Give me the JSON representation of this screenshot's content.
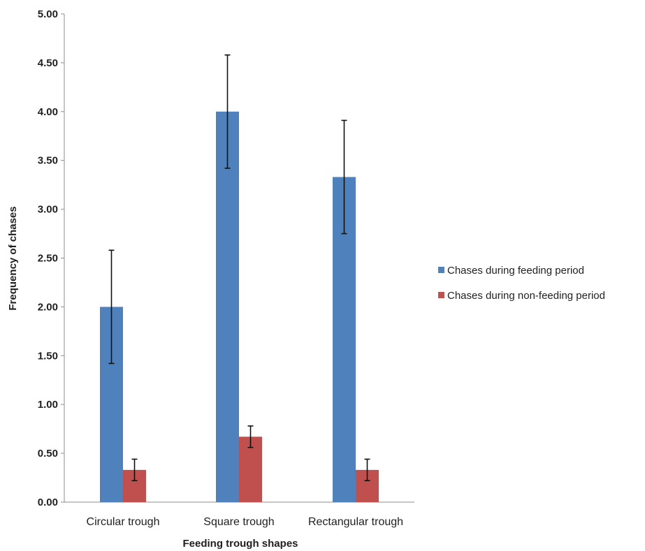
{
  "chart_data": {
    "type": "bar",
    "title": "",
    "xlabel": "Feeding trough shapes",
    "ylabel": "Frequency of chases",
    "ylim": [
      0,
      5
    ],
    "y_ticks": [
      "0.00",
      "0.50",
      "1.00",
      "1.50",
      "2.00",
      "2.50",
      "3.00",
      "3.50",
      "4.00",
      "4.50",
      "5.00"
    ],
    "categories": [
      "Circular trough",
      "Square trough",
      "Rectangular trough"
    ],
    "series": [
      {
        "name": "Chases during feeding period",
        "color": "#4f81bd",
        "values": [
          2.0,
          4.0,
          3.33
        ],
        "error": [
          0.58,
          0.58,
          0.58
        ]
      },
      {
        "name": "Chases during non-feeding period",
        "color": "#c0504d",
        "values": [
          0.33,
          0.67,
          0.33
        ],
        "error": [
          0.11,
          0.11,
          0.11
        ]
      }
    ],
    "grid": false,
    "legend_position": "right"
  }
}
